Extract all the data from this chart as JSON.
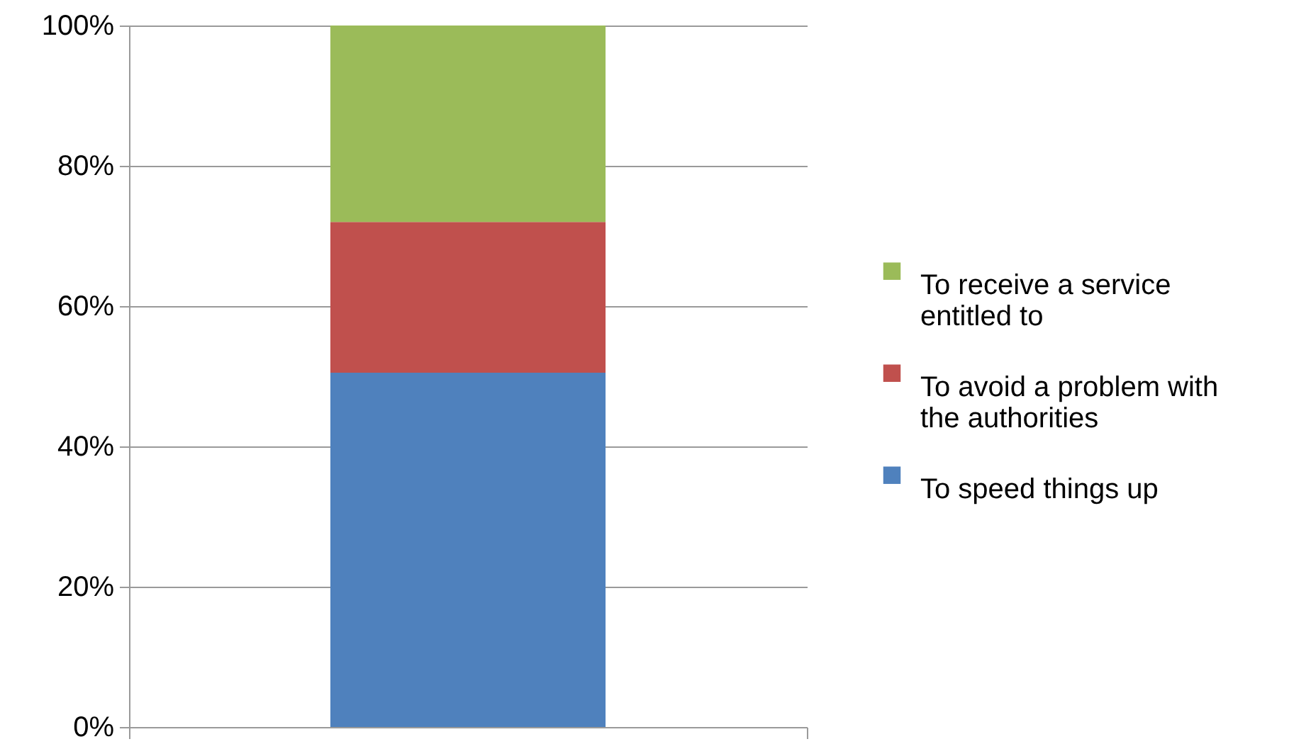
{
  "chart_data": {
    "type": "bar",
    "stacked": true,
    "categories": [
      null
    ],
    "series": [
      {
        "name": "To speed things up",
        "color": "#4f81bd",
        "values": [
          50.5
        ]
      },
      {
        "name": "To avoid a problem with the authorities",
        "color": "#c0504d",
        "values": [
          21.5
        ]
      },
      {
        "name": "To receive a service entitled to",
        "color": "#9bbb59",
        "values": [
          28.0
        ]
      }
    ],
    "ylim": [
      0,
      100
    ],
    "yticks": [
      {
        "value": 0,
        "label": "0%"
      },
      {
        "value": 20,
        "label": "20%"
      },
      {
        "value": 40,
        "label": "40%"
      },
      {
        "value": 60,
        "label": "60%"
      },
      {
        "value": 80,
        "label": "80%"
      },
      {
        "value": 100,
        "label": "100%"
      }
    ],
    "grid": "y",
    "legend": "right",
    "tick_labels": "y"
  }
}
